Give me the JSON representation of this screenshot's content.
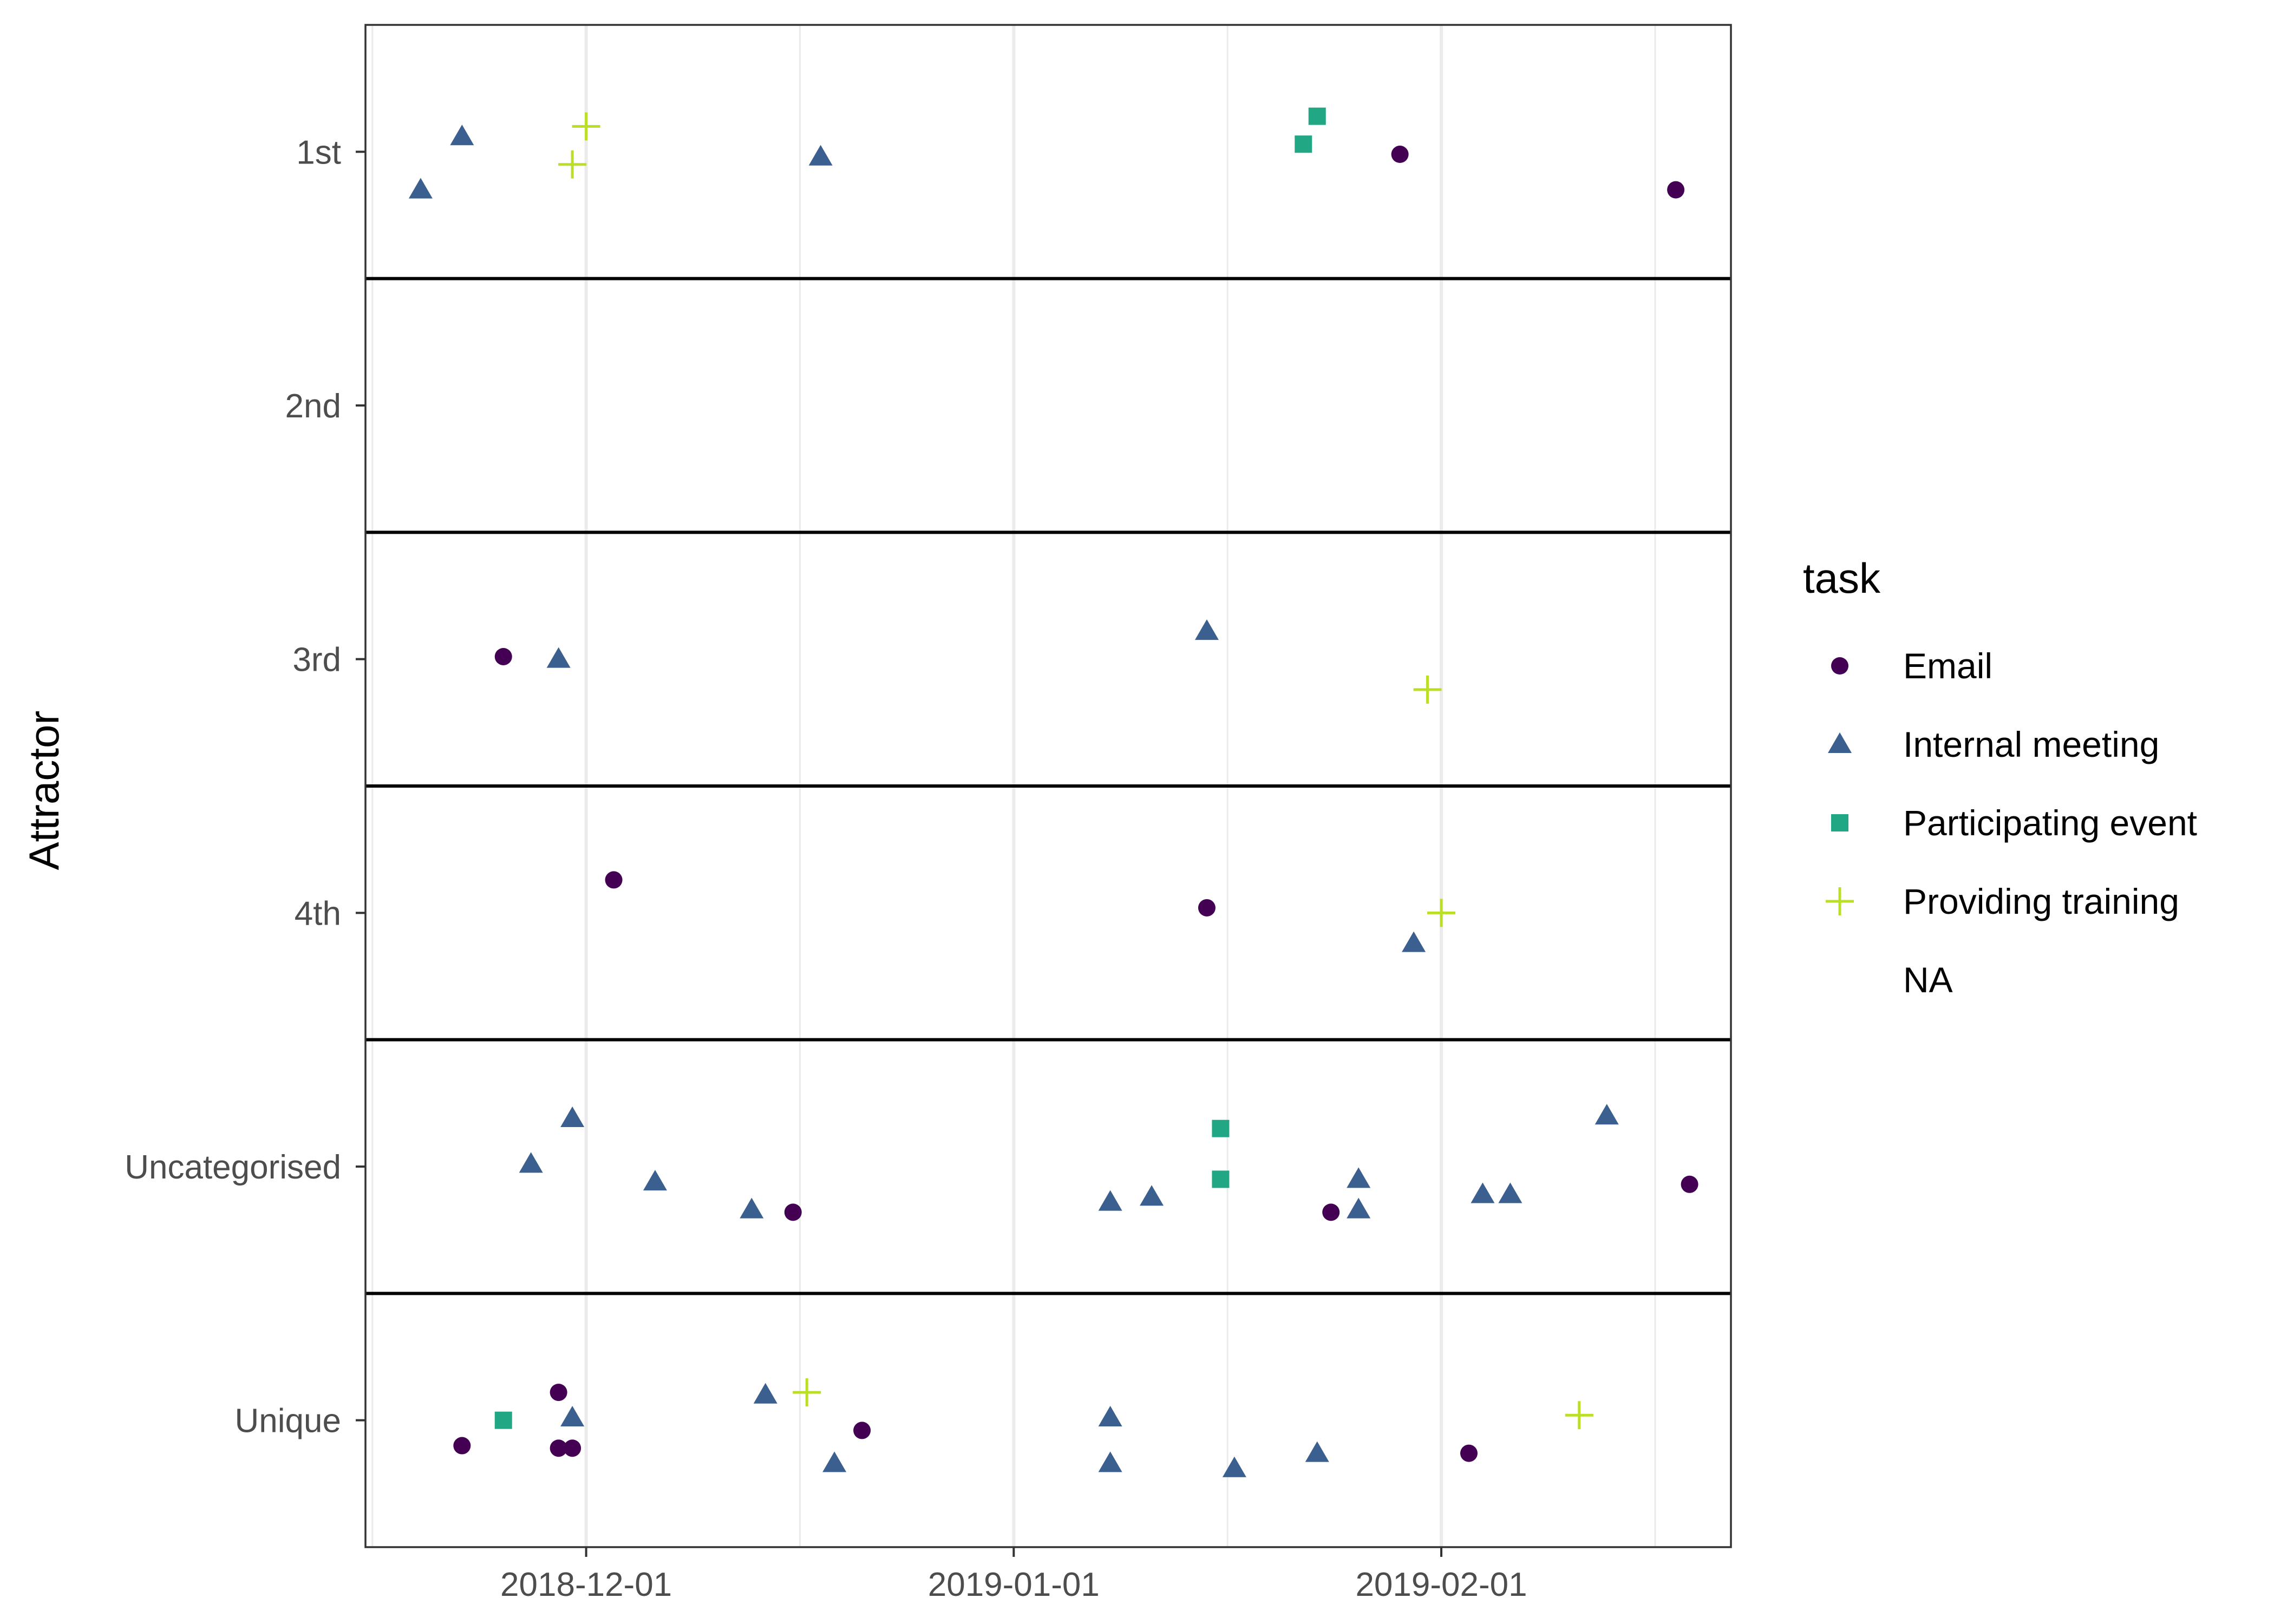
{
  "chart_data": {
    "type": "scatter",
    "title": "",
    "xlabel": "",
    "ylabel": "Attractor",
    "x_axis": {
      "kind": "date",
      "min": "2018-11-15",
      "max": "2019-02-22",
      "ticks": [
        "2018-12-01",
        "2019-01-01",
        "2019-02-01"
      ]
    },
    "categories": [
      "1st",
      "2nd",
      "3rd",
      "4th",
      "Uncategorised",
      "Unique"
    ],
    "grid": true,
    "legend": {
      "title": "task",
      "position": "right",
      "entries": [
        {
          "name": "Email",
          "shape": "circle",
          "color": "#440154"
        },
        {
          "name": "Internal meeting",
          "shape": "triangle",
          "color": "#3B5F8F"
        },
        {
          "name": "Participating event",
          "shape": "square",
          "color": "#21A783"
        },
        {
          "name": "Providing training",
          "shape": "plus",
          "color": "#BBDF27"
        },
        {
          "name": "NA",
          "shape": "none",
          "color": ""
        }
      ]
    },
    "points": [
      {
        "date": "2018-11-19",
        "category": "1st",
        "offset": -0.15,
        "task": "Internal meeting"
      },
      {
        "date": "2018-11-22",
        "category": "1st",
        "offset": 0.06,
        "task": "Internal meeting"
      },
      {
        "date": "2018-12-01",
        "category": "1st",
        "offset": 0.1,
        "task": "Providing training"
      },
      {
        "date": "2018-11-30",
        "category": "1st",
        "offset": -0.05,
        "task": "Providing training"
      },
      {
        "date": "2018-12-18",
        "category": "1st",
        "offset": -0.02,
        "task": "Internal meeting"
      },
      {
        "date": "2019-01-22",
        "category": "1st",
        "offset": 0.03,
        "task": "Participating event"
      },
      {
        "date": "2019-01-23",
        "category": "1st",
        "offset": 0.14,
        "task": "Participating event"
      },
      {
        "date": "2019-01-29",
        "category": "1st",
        "offset": -0.01,
        "task": "Email"
      },
      {
        "date": "2019-02-18",
        "category": "1st",
        "offset": -0.15,
        "task": "Email"
      },
      {
        "date": "2018-11-25",
        "category": "3rd",
        "offset": 0.01,
        "task": "Email"
      },
      {
        "date": "2018-11-29",
        "category": "3rd",
        "offset": 0.0,
        "task": "Internal meeting"
      },
      {
        "date": "2019-01-15",
        "category": "3rd",
        "offset": 0.11,
        "task": "Internal meeting"
      },
      {
        "date": "2019-01-31",
        "category": "3rd",
        "offset": -0.12,
        "task": "Providing training"
      },
      {
        "date": "2018-12-03",
        "category": "4th",
        "offset": 0.13,
        "task": "Email"
      },
      {
        "date": "2019-01-15",
        "category": "4th",
        "offset": 0.02,
        "task": "Email"
      },
      {
        "date": "2019-01-30",
        "category": "4th",
        "offset": -0.12,
        "task": "Internal meeting"
      },
      {
        "date": "2019-02-01",
        "category": "4th",
        "offset": 0.0,
        "task": "Providing training"
      },
      {
        "date": "2018-11-27",
        "category": "Uncategorised",
        "offset": 0.01,
        "task": "Internal meeting"
      },
      {
        "date": "2018-11-30",
        "category": "Uncategorised",
        "offset": 0.19,
        "task": "Internal meeting"
      },
      {
        "date": "2018-12-06",
        "category": "Uncategorised",
        "offset": -0.06,
        "task": "Internal meeting"
      },
      {
        "date": "2018-12-13",
        "category": "Uncategorised",
        "offset": -0.17,
        "task": "Internal meeting"
      },
      {
        "date": "2018-12-16",
        "category": "Uncategorised",
        "offset": -0.18,
        "task": "Email"
      },
      {
        "date": "2019-01-08",
        "category": "Uncategorised",
        "offset": -0.14,
        "task": "Internal meeting"
      },
      {
        "date": "2019-01-11",
        "category": "Uncategorised",
        "offset": -0.12,
        "task": "Internal meeting"
      },
      {
        "date": "2019-01-16",
        "category": "Uncategorised",
        "offset": 0.15,
        "task": "Participating event"
      },
      {
        "date": "2019-01-16",
        "category": "Uncategorised",
        "offset": -0.05,
        "task": "Participating event"
      },
      {
        "date": "2019-01-24",
        "category": "Uncategorised",
        "offset": -0.18,
        "task": "Email"
      },
      {
        "date": "2019-01-26",
        "category": "Uncategorised",
        "offset": -0.05,
        "task": "Internal meeting"
      },
      {
        "date": "2019-01-26",
        "category": "Uncategorised",
        "offset": -0.17,
        "task": "Internal meeting"
      },
      {
        "date": "2019-02-04",
        "category": "Uncategorised",
        "offset": -0.11,
        "task": "Internal meeting"
      },
      {
        "date": "2019-02-06",
        "category": "Uncategorised",
        "offset": -0.11,
        "task": "Internal meeting"
      },
      {
        "date": "2019-02-13",
        "category": "Uncategorised",
        "offset": 0.2,
        "task": "Internal meeting"
      },
      {
        "date": "2019-02-19",
        "category": "Uncategorised",
        "offset": -0.07,
        "task": "Email"
      },
      {
        "date": "2018-11-22",
        "category": "Unique",
        "offset": -0.1,
        "task": "Email"
      },
      {
        "date": "2018-11-25",
        "category": "Unique",
        "offset": 0.0,
        "task": "Participating event"
      },
      {
        "date": "2018-11-29",
        "category": "Unique",
        "offset": 0.11,
        "task": "Email"
      },
      {
        "date": "2018-11-29",
        "category": "Unique",
        "offset": -0.11,
        "task": "Email"
      },
      {
        "date": "2018-11-30",
        "category": "Unique",
        "offset": -0.11,
        "task": "Email"
      },
      {
        "date": "2018-11-30",
        "category": "Unique",
        "offset": 0.01,
        "task": "Internal meeting"
      },
      {
        "date": "2018-12-14",
        "category": "Unique",
        "offset": 0.1,
        "task": "Internal meeting"
      },
      {
        "date": "2018-12-17",
        "category": "Unique",
        "offset": 0.11,
        "task": "Providing training"
      },
      {
        "date": "2018-12-19",
        "category": "Unique",
        "offset": -0.17,
        "task": "Internal meeting"
      },
      {
        "date": "2018-12-21",
        "category": "Unique",
        "offset": -0.04,
        "task": "Email"
      },
      {
        "date": "2019-01-08",
        "category": "Unique",
        "offset": 0.01,
        "task": "Internal meeting"
      },
      {
        "date": "2019-01-08",
        "category": "Unique",
        "offset": -0.17,
        "task": "Internal meeting"
      },
      {
        "date": "2019-01-17",
        "category": "Unique",
        "offset": -0.19,
        "task": "Internal meeting"
      },
      {
        "date": "2019-01-23",
        "category": "Unique",
        "offset": -0.13,
        "task": "Internal meeting"
      },
      {
        "date": "2019-02-03",
        "category": "Unique",
        "offset": -0.13,
        "task": "Email"
      },
      {
        "date": "2019-02-11",
        "category": "Unique",
        "offset": 0.02,
        "task": "Providing training"
      }
    ]
  }
}
